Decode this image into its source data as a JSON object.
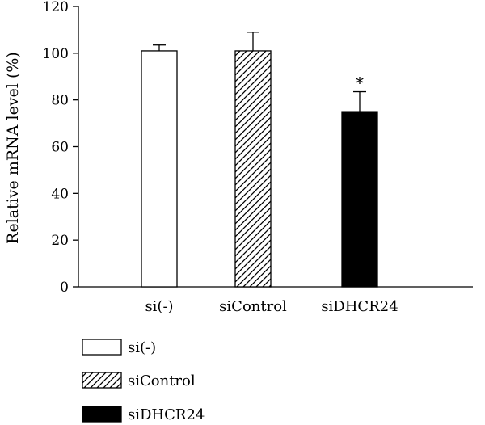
{
  "chart_data": {
    "type": "bar",
    "ylabel": "Relative mRNA level (%)",
    "ylim": [
      0,
      120
    ],
    "yticks": [
      0,
      20,
      40,
      60,
      80,
      100,
      120
    ],
    "grid": false,
    "legend_position": "bottom-left",
    "categories": [
      "si(-)",
      "siControl",
      "siDHCR24"
    ],
    "values": [
      101,
      101,
      75
    ],
    "errors": [
      2.5,
      8,
      8.5
    ],
    "fills": [
      "white",
      "hatched",
      "black"
    ],
    "annotations": [
      "",
      "",
      "*"
    ],
    "legend": [
      {
        "label": "si(-)",
        "fill": "white"
      },
      {
        "label": "siControl",
        "fill": "hatched"
      },
      {
        "label": "siDHCR24",
        "fill": "black"
      }
    ]
  }
}
